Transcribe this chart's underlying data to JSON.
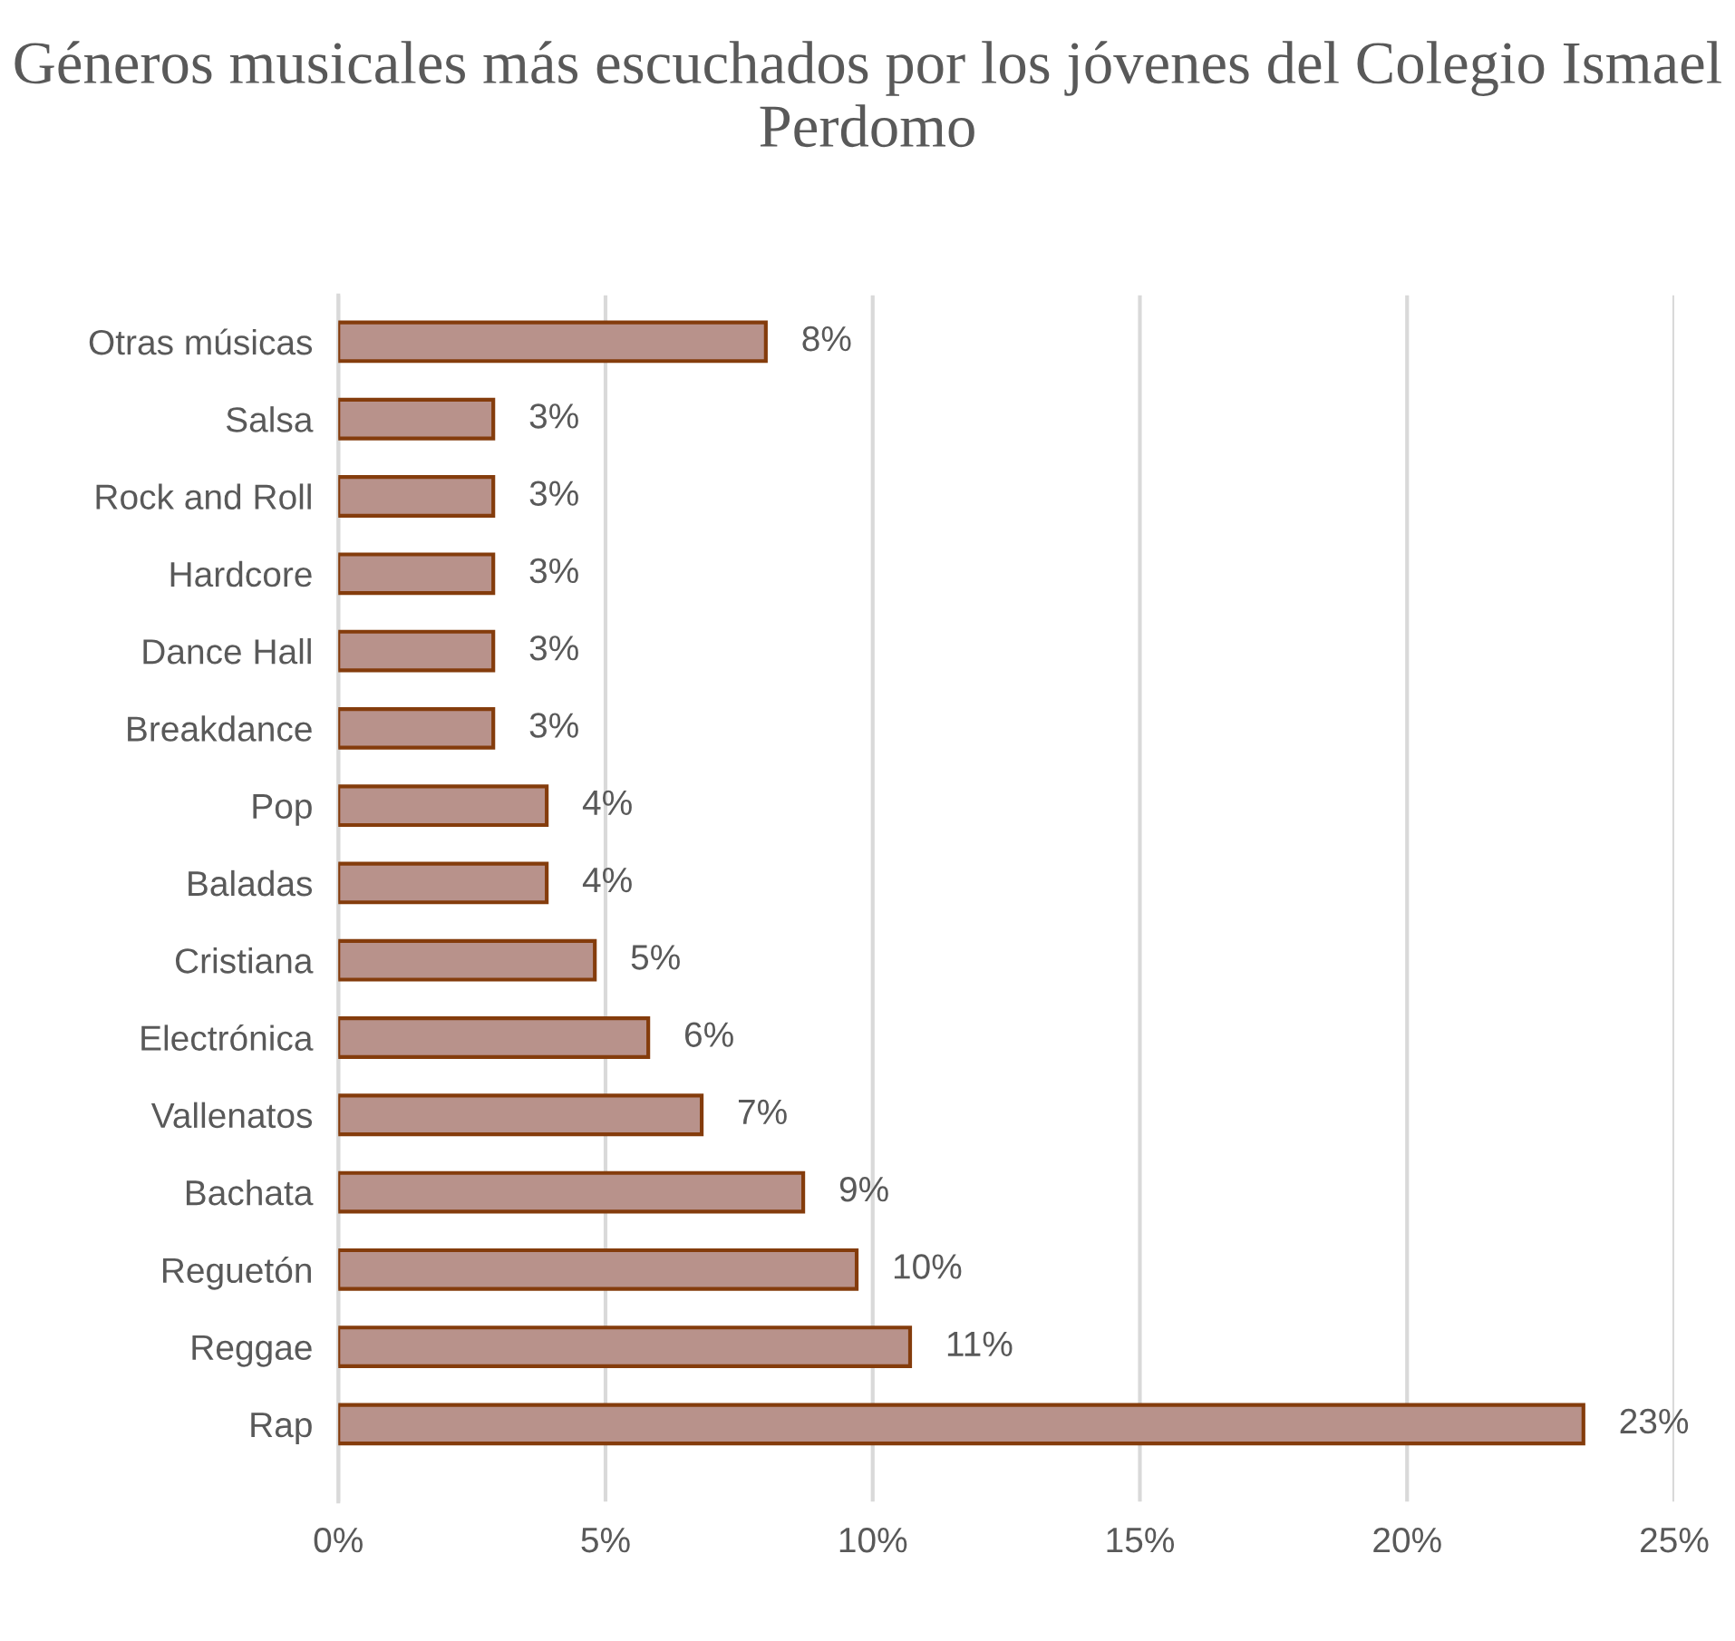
{
  "chart_data": {
    "type": "bar",
    "orientation": "horizontal",
    "title": "Géneros musicales más escuchados por los jóvenes del Colegio Ismael Perdomo",
    "categories": [
      "Otras músicas",
      "Salsa",
      "Rock and Roll",
      "Hardcore",
      "Dance Hall",
      "Breakdance",
      "Pop",
      "Baladas",
      "Cristiana",
      "Electrónica",
      "Vallenatos",
      "Bachata",
      "Reguetón",
      "Reggae",
      "Rap"
    ],
    "values": [
      8.0,
      2.9,
      2.9,
      2.9,
      2.9,
      2.9,
      3.9,
      3.9,
      4.8,
      5.8,
      6.8,
      8.7,
      9.7,
      10.7,
      23.3
    ],
    "value_labels": [
      "8%",
      "3%",
      "3%",
      "3%",
      "3%",
      "3%",
      "4%",
      "4%",
      "5%",
      "6%",
      "7%",
      "9%",
      "10%",
      "11%",
      "23%"
    ],
    "color": "#b8928b",
    "xlim": [
      0,
      25
    ],
    "xticks": [
      {
        "value": 0,
        "label": "0%"
      },
      {
        "value": 5,
        "label": "5%"
      },
      {
        "value": 10,
        "label": "10%"
      },
      {
        "value": 15,
        "label": "15%"
      },
      {
        "value": 20,
        "label": "20%"
      },
      {
        "value": 25,
        "label": "25%"
      }
    ],
    "grid": "x"
  }
}
